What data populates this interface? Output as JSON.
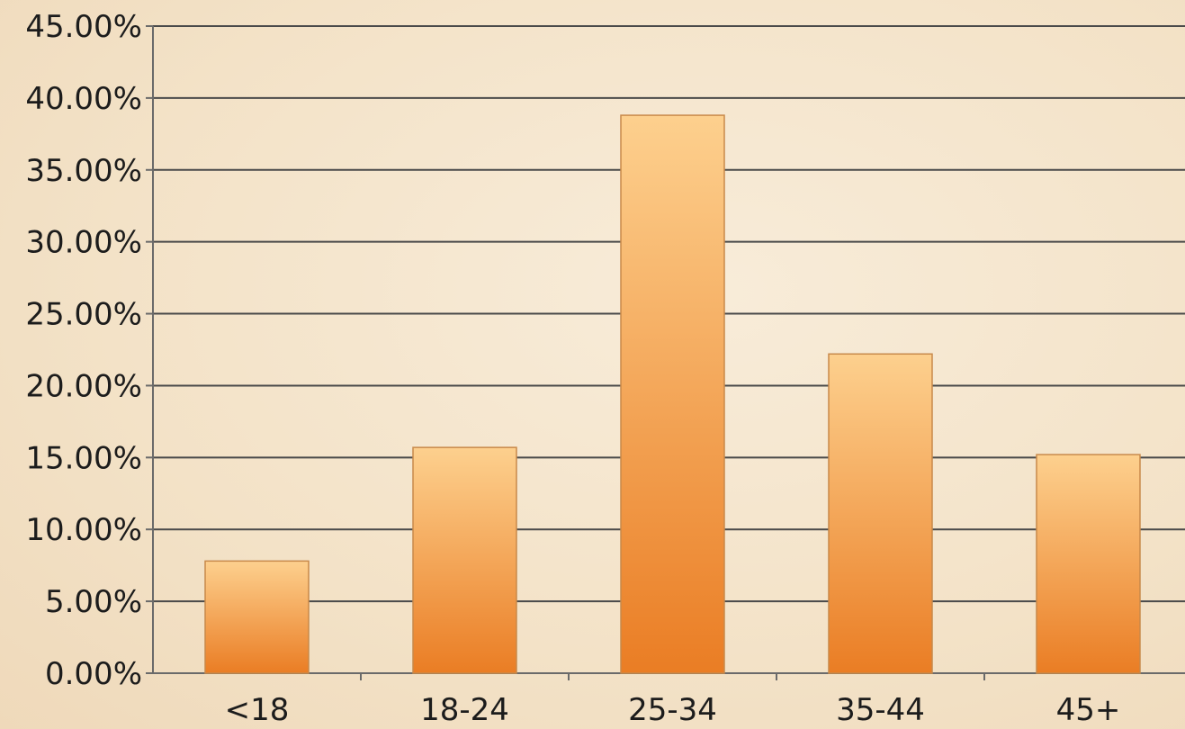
{
  "chart_data": {
    "type": "bar",
    "categories": [
      "<18",
      "18-24",
      "25-34",
      "35-44",
      "45+"
    ],
    "values": [
      7.8,
      15.7,
      38.8,
      22.2,
      15.2
    ],
    "title": "",
    "xlabel": "",
    "ylabel": "",
    "ylim": [
      0,
      45
    ],
    "y_ticks": [
      0,
      5,
      10,
      15,
      20,
      25,
      30,
      35,
      40,
      45
    ],
    "y_tick_labels": [
      "0.00%",
      "5.00%",
      "10.00%",
      "15.00%",
      "20.00%",
      "25.00%",
      "30.00%",
      "35.00%",
      "40.00%",
      "45.00%"
    ],
    "grid": true,
    "legend": "none",
    "colors": {
      "bar_top": "#fdd08e",
      "bar_bottom": "#ea7d24",
      "bar_stroke": "#c8894a",
      "grid": "#4a4a4a",
      "axis": "#6a6a6a",
      "text": "#1c1c1c"
    }
  }
}
